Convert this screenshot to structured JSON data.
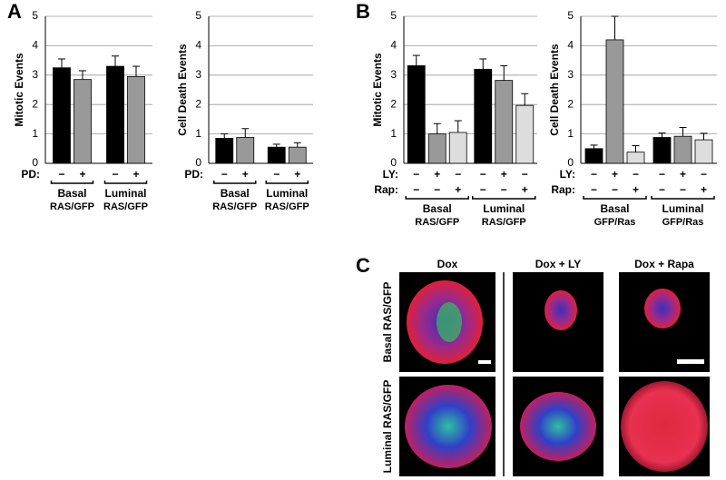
{
  "panel_labels": [
    "A",
    "B",
    "C"
  ],
  "chart_data": [
    {
      "type": "bar",
      "y_label": "Mitotic Events",
      "ylim": [
        0,
        5
      ],
      "yticks": [
        0,
        1,
        2,
        3,
        4,
        5
      ],
      "grid": true,
      "groups": [
        [
          "Basal",
          "RAS/GFP"
        ],
        [
          "Luminal",
          "RAS/GFP"
        ]
      ],
      "conditions": [
        {
          "label": "PD:",
          "signs": [
            "−",
            "+"
          ]
        }
      ],
      "series": [
        {
          "color": "#000000",
          "values": [
            3.25,
            3.3
          ],
          "errors": [
            0.3,
            0.35
          ]
        },
        {
          "color": "#999999",
          "values": [
            2.85,
            2.95
          ],
          "errors": [
            0.3,
            0.35
          ]
        }
      ]
    },
    {
      "type": "bar",
      "y_label": "Cell Death Events",
      "ylim": [
        0,
        5
      ],
      "yticks": [
        0,
        1,
        2,
        3,
        4,
        5
      ],
      "grid": true,
      "groups": [
        [
          "Basal",
          "RAS/GFP"
        ],
        [
          "Luminal",
          "RAS/GFP"
        ]
      ],
      "conditions": [
        {
          "label": "PD:",
          "signs": [
            "−",
            "+"
          ]
        }
      ],
      "series": [
        {
          "color": "#000000",
          "values": [
            0.85,
            0.55
          ],
          "errors": [
            0.15,
            0.1
          ]
        },
        {
          "color": "#999999",
          "values": [
            0.88,
            0.55
          ],
          "errors": [
            0.3,
            0.15
          ]
        }
      ]
    },
    {
      "type": "bar",
      "y_label": "Mitotic Events",
      "ylim": [
        0,
        5
      ],
      "yticks": [
        0,
        1,
        2,
        3,
        4,
        5
      ],
      "grid": true,
      "groups": [
        [
          "Basal",
          "RAS/GFP"
        ],
        [
          "Luminal",
          "RAS/GFP"
        ]
      ],
      "conditions": [
        {
          "label": "LY:",
          "signs": [
            "−",
            "+",
            "−"
          ]
        },
        {
          "label": "Rap:",
          "signs": [
            "−",
            "−",
            "+"
          ]
        }
      ],
      "series": [
        {
          "color": "#000000",
          "values": [
            3.32,
            3.2
          ],
          "errors": [
            0.35,
            0.35
          ]
        },
        {
          "color": "#999999",
          "values": [
            1.0,
            2.82
          ],
          "errors": [
            0.35,
            0.5
          ]
        },
        {
          "color": "#dddddd",
          "values": [
            1.05,
            1.97
          ],
          "errors": [
            0.4,
            0.4
          ]
        }
      ]
    },
    {
      "type": "bar",
      "y_label": "Cell Death Events",
      "ylim": [
        0,
        5
      ],
      "yticks": [
        0,
        1,
        2,
        3,
        4,
        5
      ],
      "grid": true,
      "groups": [
        [
          "Basal",
          "GFP/Ras"
        ],
        [
          "Luminal",
          "GFP/Ras"
        ]
      ],
      "conditions": [
        {
          "label": "LY:",
          "signs": [
            "−",
            "+",
            "−"
          ]
        },
        {
          "label": "Rap:",
          "signs": [
            "−",
            "−",
            "+"
          ]
        }
      ],
      "series": [
        {
          "color": "#000000",
          "values": [
            0.5,
            0.88
          ],
          "errors": [
            0.12,
            0.15
          ]
        },
        {
          "color": "#999999",
          "values": [
            4.2,
            0.92
          ],
          "errors": [
            0.8,
            0.3
          ]
        },
        {
          "color": "#dddddd",
          "values": [
            0.38,
            0.8
          ],
          "errors": [
            0.22,
            0.22
          ]
        }
      ]
    }
  ],
  "panel_c": {
    "columns": [
      "Dox",
      "Dox + LY",
      "Dox + Rapa"
    ],
    "rows": [
      "Basal RAS/GFP",
      "Luminal RAS/GFP"
    ]
  }
}
